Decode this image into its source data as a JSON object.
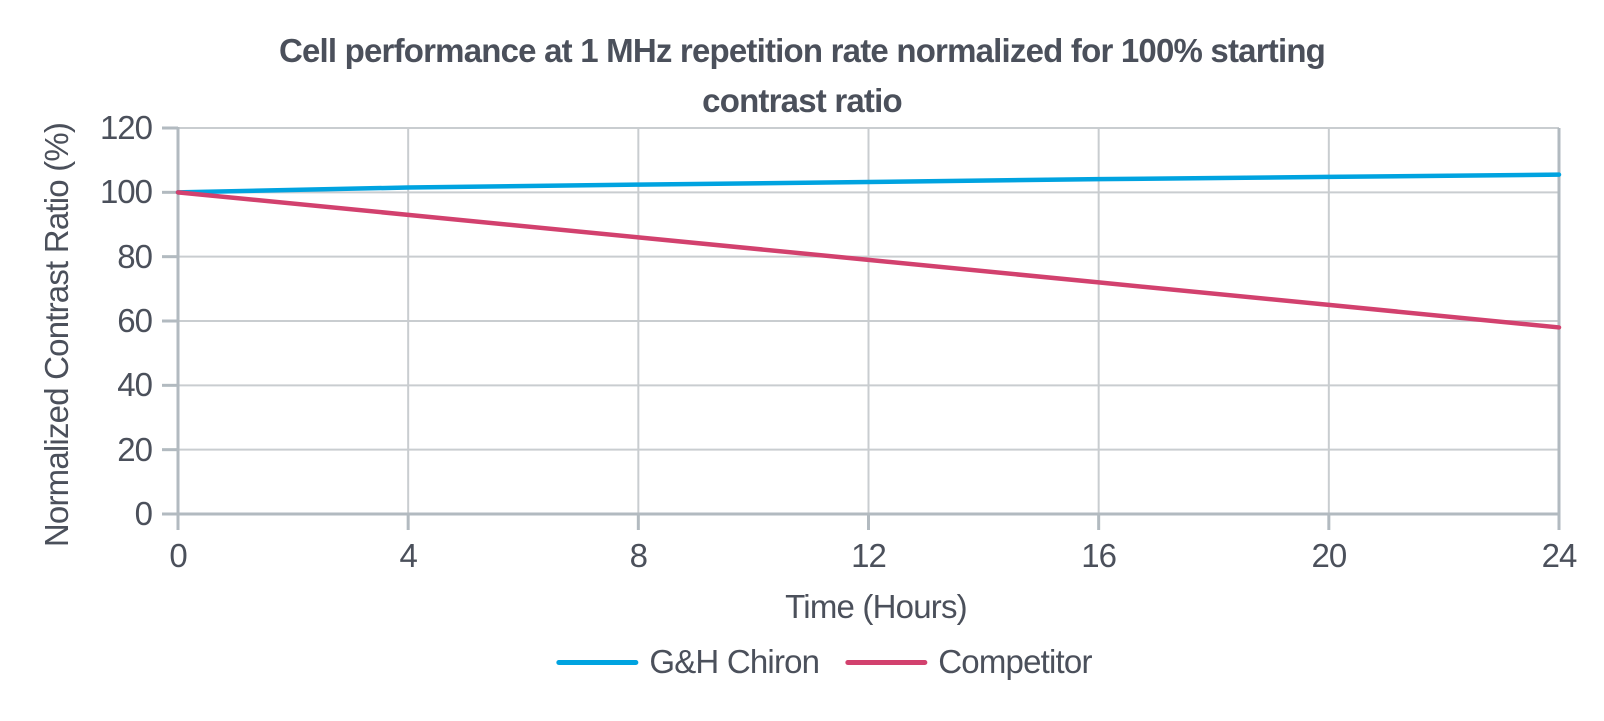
{
  "theme": {
    "background": "#ffffff",
    "text_color": "#4b505b",
    "grid_color": "#c9cdd0",
    "axis_color": "#b2bac0",
    "accent_blue": "#00a3e0",
    "accent_pink": "#d2416e"
  },
  "chart": {
    "title_lines": [
      "Cell performance at 1 MHz repetition rate normalized for 100% starting",
      "contrast ratio"
    ]
  },
  "chart_data": {
    "type": "line",
    "title": "Cell performance at 1 MHz repetition rate normalized for 100% starting contrast ratio",
    "xlabel": "Time (Hours)",
    "ylabel": "Normalized Contrast Ratio (%)",
    "xlim": [
      0,
      24
    ],
    "ylim": [
      0,
      120
    ],
    "x_ticks": [
      0,
      4,
      8,
      12,
      16,
      20,
      24
    ],
    "y_ticks": [
      0,
      20,
      40,
      60,
      80,
      100,
      120
    ],
    "grid": true,
    "legend_position": "bottom",
    "x": [
      0,
      4,
      8,
      12,
      16,
      20,
      24
    ],
    "series": [
      {
        "name": "G&H Chiron",
        "color": "#00a3e0",
        "values": [
          100,
          101.5,
          102.4,
          103.2,
          104.1,
          104.8,
          105.5
        ]
      },
      {
        "name": "Competitor",
        "color": "#d2416e",
        "values": [
          100,
          93,
          86,
          79,
          72,
          65,
          58
        ]
      }
    ]
  }
}
